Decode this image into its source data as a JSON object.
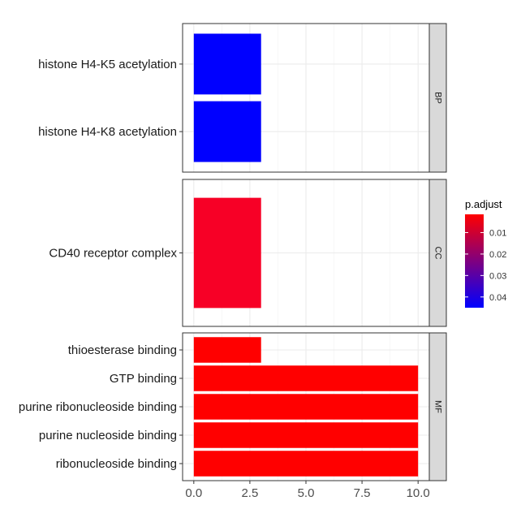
{
  "chart_data": {
    "type": "bar",
    "orientation": "horizontal",
    "facet_by": "ontology",
    "xlim": [
      -0.5,
      10.5
    ],
    "x_ticks": [
      "0.0",
      "2.5",
      "5.0",
      "7.5",
      "10.0"
    ],
    "x_tick_values": [
      0,
      2.5,
      5,
      7.5,
      10
    ],
    "grid": true,
    "legend_position": "right",
    "facets": [
      {
        "name": "BP",
        "bars": [
          {
            "label": "histone H4-K5 acetylation",
            "value": 3,
            "p_adjust": 0.045,
            "color": "#0000FF"
          },
          {
            "label": "histone H4-K8 acetylation",
            "value": 3,
            "p_adjust": 0.045,
            "color": "#0000FF"
          }
        ]
      },
      {
        "name": "CC",
        "bars": [
          {
            "label": "CD40 receptor complex",
            "value": 3,
            "p_adjust": 0.004,
            "color": "#F70026"
          }
        ]
      },
      {
        "name": "MF",
        "bars": [
          {
            "label": "thioesterase binding",
            "value": 3,
            "p_adjust": 0.0015,
            "color": "#FF0000"
          },
          {
            "label": "GTP binding",
            "value": 10,
            "p_adjust": 0.0015,
            "color": "#FF0000"
          },
          {
            "label": "purine ribonucleoside binding",
            "value": 10,
            "p_adjust": 0.0015,
            "color": "#FF0000"
          },
          {
            "label": "purine nucleoside binding",
            "value": 10,
            "p_adjust": 0.0015,
            "color": "#FF0000"
          },
          {
            "label": "ribonucleoside binding",
            "value": 10,
            "p_adjust": 0.0015,
            "color": "#FF0000"
          }
        ]
      }
    ],
    "legend": {
      "title": "p.adjust",
      "ticks": [
        "0.01",
        "0.02",
        "0.03",
        "0.04"
      ],
      "tick_values": [
        0.01,
        0.02,
        0.03,
        0.04
      ],
      "range": [
        0.0015,
        0.045
      ],
      "low_color": "#FF0000",
      "high_color": "#0000FF"
    }
  }
}
